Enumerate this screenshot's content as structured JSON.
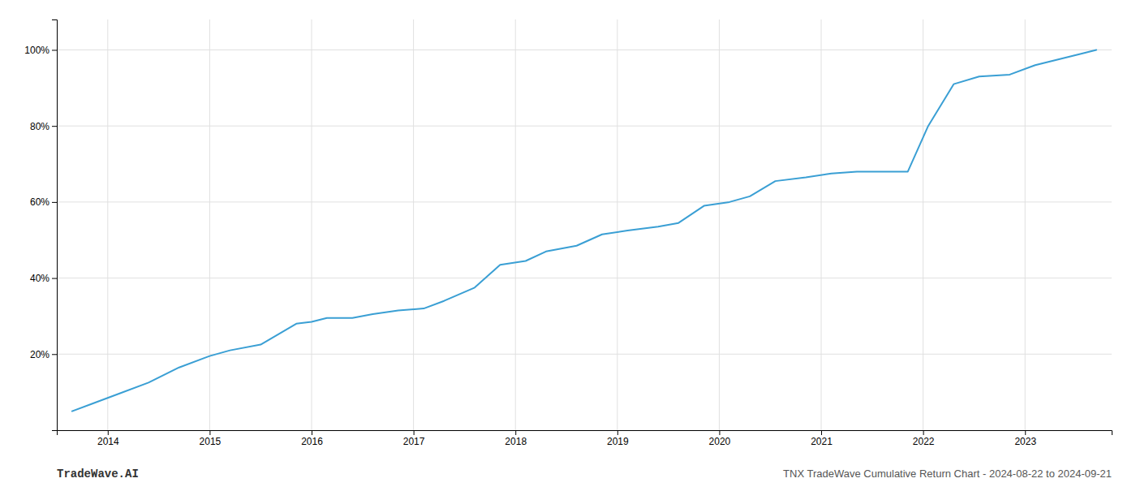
{
  "chart_data": {
    "type": "line",
    "title": "TNX TradeWave Cumulative Return Chart - 2024-08-22 to 2024-09-21",
    "annotations": [
      "TradeWave.AI"
    ],
    "x": [
      2013.65,
      2013.85,
      2014.1,
      2014.4,
      2014.7,
      2015.0,
      2015.2,
      2015.5,
      2015.85,
      2016.0,
      2016.15,
      2016.4,
      2016.6,
      2016.85,
      2017.1,
      2017.3,
      2017.6,
      2017.85,
      2018.1,
      2018.3,
      2018.6,
      2018.85,
      2019.1,
      2019.4,
      2019.6,
      2019.85,
      2020.1,
      2020.3,
      2020.55,
      2020.85,
      2021.1,
      2021.35,
      2021.55,
      2021.85,
      2022.05,
      2022.3,
      2022.55,
      2022.85,
      2023.1,
      2023.55,
      2023.7
    ],
    "values": [
      5.0,
      7.0,
      9.5,
      12.5,
      16.5,
      19.5,
      21.0,
      22.5,
      28.0,
      28.5,
      29.5,
      29.5,
      30.5,
      31.5,
      32.0,
      34.0,
      37.5,
      43.5,
      44.5,
      47.0,
      48.5,
      51.5,
      52.5,
      53.5,
      54.5,
      59.0,
      60.0,
      61.5,
      65.5,
      66.5,
      67.5,
      68.0,
      68.0,
      68.0,
      80.0,
      91.0,
      93.0,
      93.5,
      96.0,
      99.0,
      100.0
    ],
    "color": "#3a9fd4",
    "xlim": [
      2013.5,
      2023.85
    ],
    "ylim": [
      0,
      108
    ],
    "xticks": [
      2014,
      2015,
      2016,
      2017,
      2018,
      2019,
      2020,
      2021,
      2022,
      2023
    ],
    "yticks": [
      {
        "value": 20,
        "label": "20%"
      },
      {
        "value": 40,
        "label": "40%"
      },
      {
        "value": 60,
        "label": "60%"
      },
      {
        "value": 80,
        "label": "80%"
      },
      {
        "value": 100,
        "label": "100%"
      }
    ],
    "grid": true
  }
}
